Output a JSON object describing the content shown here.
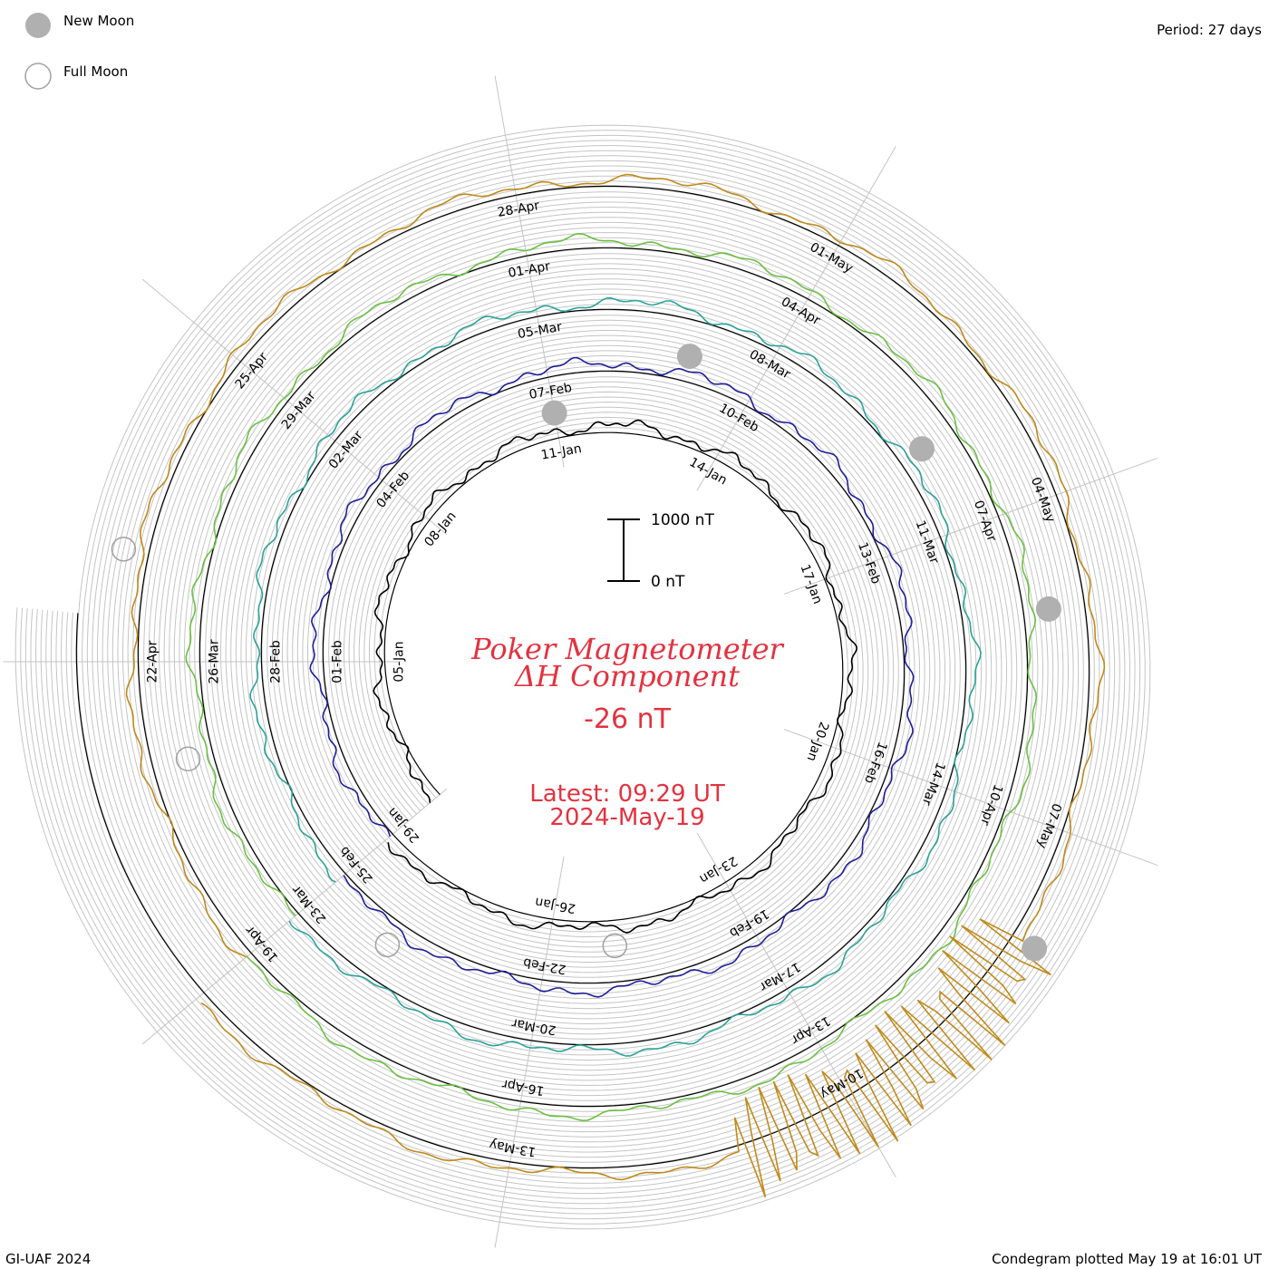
{
  "legend": {
    "new_moon_label": "New Moon",
    "full_moon_label": "Full Moon",
    "new_moon_color": "#b0b0b0",
    "full_moon_color": "#a0a0a0"
  },
  "period_text": "Period: 27 days",
  "footer_left": "GI-UAF 2024",
  "footer_right": "Condegram plotted May 19 at 16:01 UT",
  "center": {
    "title_line1": "Poker Magnetometer",
    "title_line2": "ΔH Component",
    "current_value": "-26 nT",
    "latest_line1": "Latest: 09:29 UT",
    "latest_line2": "2024-May-19"
  },
  "scale_bar": {
    "top_label": "1000 nT",
    "bottom_label": "0 nT",
    "top_value": 1000,
    "bottom_value": 0
  },
  "chart_data": {
    "type": "line",
    "period_days": 27,
    "start_date": "2024-01-02",
    "end_date": "2024-05-19",
    "component": "ΔH",
    "units": "nT",
    "series": [
      {
        "rotation": 1,
        "color": "#000000",
        "date_labels": [
          "05-Jan",
          "08-Jan",
          "11-Jan",
          "14-Jan",
          "17-Jan",
          "20-Jan",
          "23-Jan",
          "26-Jan",
          "29-Jan"
        ]
      },
      {
        "rotation": 2,
        "color": "#1f1f9a",
        "date_labels": [
          "01-Feb",
          "04-Feb",
          "07-Feb",
          "10-Feb",
          "13-Feb",
          "16-Feb",
          "19-Feb",
          "22-Feb",
          "25-Feb"
        ]
      },
      {
        "rotation": 3,
        "color": "#2aa39a",
        "date_labels": [
          "28-Feb",
          "02-Mar",
          "05-Mar",
          "08-Mar",
          "11-Mar",
          "14-Mar",
          "17-Mar",
          "20-Mar",
          "23-Mar"
        ]
      },
      {
        "rotation": 4,
        "color": "#6cc043",
        "date_labels": [
          "26-Mar",
          "29-Mar",
          "01-Apr",
          "04-Apr",
          "07-Apr",
          "10-Apr",
          "13-Apr",
          "16-Apr",
          "19-Apr"
        ]
      },
      {
        "rotation": 5,
        "color": "#c08a1a",
        "date_labels": [
          "22-Apr",
          "25-Apr",
          "28-Apr",
          "01-May",
          "04-May",
          "07-May",
          "10-May",
          "13-May"
        ]
      }
    ],
    "new_moons": [
      "2024-01-11",
      "2024-02-09",
      "2024-03-10",
      "2024-04-08",
      "2024-05-08"
    ],
    "full_moons": [
      "2024-01-25",
      "2024-02-24",
      "2024-03-25",
      "2024-04-23"
    ]
  }
}
